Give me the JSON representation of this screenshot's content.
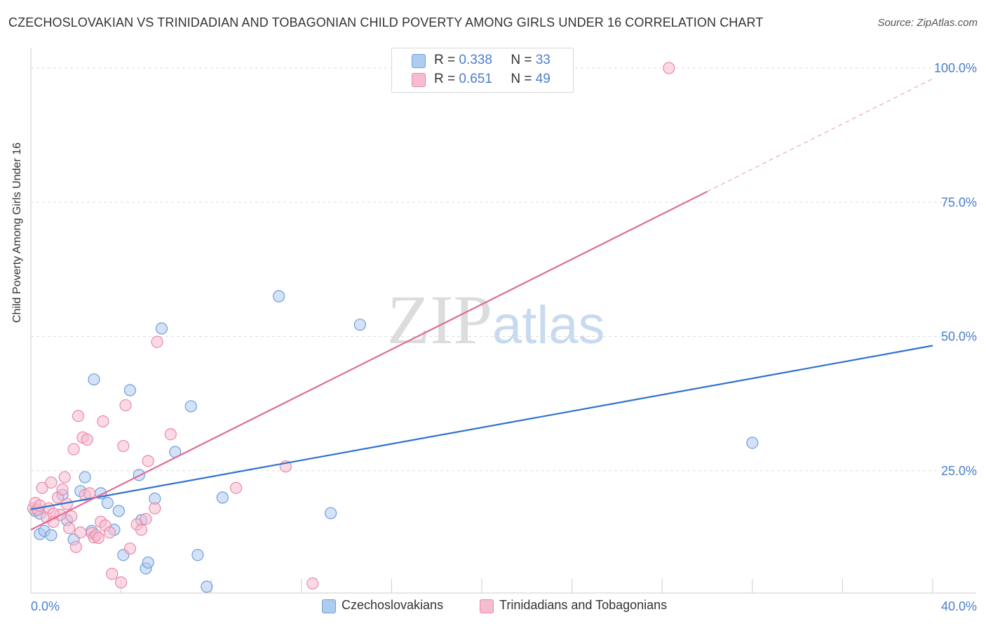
{
  "title": "CZECHOSLOVAKIAN VS TRINIDADIAN AND TOBAGONIAN CHILD POVERTY AMONG GIRLS UNDER 16 CORRELATION CHART",
  "source": "Source: ZipAtlas.com",
  "watermark": {
    "zip": "ZIP",
    "atlas": "atlas"
  },
  "legend": {
    "r_label": "R =",
    "n_label": "N =",
    "series1": {
      "r": "0.338",
      "n": "33"
    },
    "series2": {
      "r": "0.651",
      "n": "49"
    }
  },
  "bottom_legend": {
    "series1": "Czechoslovakians",
    "series2": "Trinidadians and Tobagonians"
  },
  "colors": {
    "blue_fill": "#aecbf0",
    "blue_stroke": "#6f9fdc",
    "blue_line": "#2f72d0",
    "pink_fill": "#f7bcd0",
    "pink_stroke": "#e88aa9",
    "pink_line": "#e06b95",
    "tick_text": "#4a7fd0",
    "grid": "#dddddd"
  },
  "chart_data": {
    "type": "scatter",
    "title": "CZECHOSLOVAKIAN VS TRINIDADIAN AND TOBAGONIAN CHILD POVERTY AMONG GIRLS UNDER 16 CORRELATION CHART",
    "xlabel": "",
    "ylabel": "Child Poverty Among Girls Under 16",
    "xlim": [
      0,
      40
    ],
    "ylim": [
      0,
      100
    ],
    "x_tick_labels": [
      "0.0%",
      "40.0%"
    ],
    "y_ticks": [
      25,
      50,
      75,
      100
    ],
    "y_tick_labels": [
      "25.0%",
      "50.0%",
      "75.0%",
      "100.0%"
    ],
    "series": [
      {
        "name": "Czechoslovakians",
        "r": 0.338,
        "n": 33,
        "trend": {
          "x0": 0,
          "y0": 17.8,
          "x1": 40,
          "y1": 48.3,
          "dashed_to": null
        },
        "points": [
          [
            0.2,
            17.5
          ],
          [
            0.4,
            13.2
          ],
          [
            0.6,
            13.8
          ],
          [
            0.9,
            13.0
          ],
          [
            1.4,
            20.5
          ],
          [
            1.6,
            15.8
          ],
          [
            1.9,
            12.2
          ],
          [
            2.2,
            21.2
          ],
          [
            2.4,
            23.8
          ],
          [
            2.7,
            13.8
          ],
          [
            2.8,
            42.0
          ],
          [
            3.1,
            20.8
          ],
          [
            3.4,
            19.0
          ],
          [
            3.7,
            14.0
          ],
          [
            3.9,
            17.5
          ],
          [
            4.1,
            9.3
          ],
          [
            4.4,
            40.0
          ],
          [
            4.8,
            24.2
          ],
          [
            4.9,
            15.8
          ],
          [
            5.1,
            6.8
          ],
          [
            5.2,
            7.9
          ],
          [
            5.5,
            19.8
          ],
          [
            5.8,
            51.5
          ],
          [
            6.4,
            28.5
          ],
          [
            7.1,
            37.0
          ],
          [
            7.4,
            9.3
          ],
          [
            7.8,
            3.4
          ],
          [
            8.5,
            20.0
          ],
          [
            11.0,
            57.5
          ],
          [
            13.3,
            17.1
          ],
          [
            14.6,
            52.2
          ],
          [
            32.0,
            30.2
          ],
          [
            0.4,
            17.0
          ]
        ]
      },
      {
        "name": "Trinidadians and Tobagonians",
        "r": 0.651,
        "n": 49,
        "trend": {
          "x0": 0,
          "y0": 14.0,
          "x1": 30.0,
          "y1": 77.0,
          "dashed_to": [
            40,
            98.0
          ]
        },
        "points": [
          [
            0.1,
            18.0
          ],
          [
            0.2,
            19.0
          ],
          [
            0.3,
            17.8
          ],
          [
            0.4,
            18.5
          ],
          [
            0.5,
            21.8
          ],
          [
            0.7,
            16.3
          ],
          [
            0.8,
            18.0
          ],
          [
            0.9,
            22.8
          ],
          [
            1.0,
            15.5
          ],
          [
            1.2,
            20.0
          ],
          [
            1.3,
            16.8
          ],
          [
            1.4,
            21.5
          ],
          [
            1.5,
            23.8
          ],
          [
            1.6,
            18.8
          ],
          [
            1.7,
            14.3
          ],
          [
            1.8,
            16.5
          ],
          [
            1.9,
            29.0
          ],
          [
            2.0,
            10.8
          ],
          [
            2.1,
            35.2
          ],
          [
            2.2,
            13.5
          ],
          [
            2.3,
            31.2
          ],
          [
            2.4,
            20.5
          ],
          [
            2.5,
            30.8
          ],
          [
            2.6,
            20.8
          ],
          [
            2.7,
            13.4
          ],
          [
            2.8,
            12.6
          ],
          [
            2.9,
            13.0
          ],
          [
            3.0,
            12.5
          ],
          [
            3.1,
            15.5
          ],
          [
            3.2,
            34.2
          ],
          [
            3.3,
            14.8
          ],
          [
            3.5,
            13.5
          ],
          [
            3.6,
            5.8
          ],
          [
            4.0,
            4.2
          ],
          [
            4.1,
            29.6
          ],
          [
            4.2,
            37.2
          ],
          [
            4.4,
            10.5
          ],
          [
            4.7,
            15.0
          ],
          [
            4.9,
            14.0
          ],
          [
            5.1,
            16.0
          ],
          [
            5.2,
            26.8
          ],
          [
            5.5,
            18.0
          ],
          [
            5.6,
            49.0
          ],
          [
            6.2,
            31.8
          ],
          [
            9.1,
            21.8
          ],
          [
            11.3,
            25.8
          ],
          [
            12.5,
            4.0
          ],
          [
            28.3,
            100.0
          ],
          [
            1.0,
            17.0
          ]
        ]
      }
    ]
  }
}
